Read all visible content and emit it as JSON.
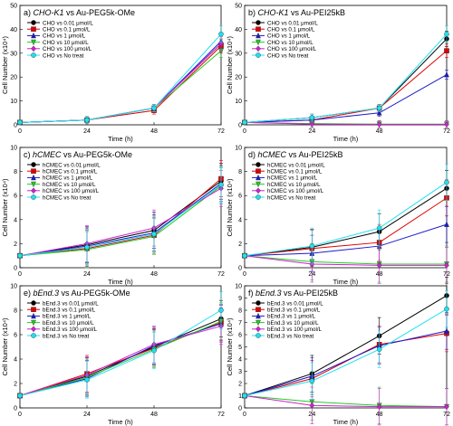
{
  "chart_data": [
    {
      "type": "line",
      "panel_label": "a)",
      "title_cell": "CHO-K1",
      "title_rest": " vs Au-PEG5k-OMe",
      "xlabel": "Time (h)",
      "ylabel": "Cell Number (x10⁴)",
      "x": [
        0,
        24,
        48,
        72
      ],
      "xticks": [
        "0",
        "24",
        "48",
        "72"
      ],
      "ylim": [
        0,
        50
      ],
      "yticks": [
        0,
        10,
        20,
        30,
        40,
        50
      ],
      "legend": "top-left",
      "series": [
        {
          "name": "CHO vs 0.01 μmol/L",
          "values": [
            1,
            2,
            7,
            34
          ],
          "color": "#000000",
          "marker": "circle"
        },
        {
          "name": "CHO vs 0.1 μmol/L",
          "values": [
            1,
            2,
            6,
            33
          ],
          "color": "#e00000",
          "marker": "square"
        },
        {
          "name": "CHO vs 1 μmol/L",
          "values": [
            1,
            2,
            7,
            35
          ],
          "color": "#1a1acc",
          "marker": "triangle"
        },
        {
          "name": "CHO vs 10 μmol/L",
          "values": [
            1,
            2,
            7,
            31
          ],
          "color": "#22cc22",
          "marker": "tri-down"
        },
        {
          "name": "CHO vs 100 μmol/L",
          "values": [
            1,
            2,
            7,
            34
          ],
          "color": "#d020d0",
          "marker": "diamond"
        },
        {
          "name": "CHO vs No treat",
          "values": [
            1,
            2,
            7,
            38
          ],
          "color": "#20e0f0",
          "marker": "circle-open"
        }
      ]
    },
    {
      "type": "line",
      "panel_label": "b)",
      "title_cell": "CHO-K1",
      "title_rest": " vs Au-PEI25kB",
      "xlabel": "Time (h)",
      "ylabel": "Cell Number (x10⁴)",
      "x": [
        0,
        24,
        48,
        72
      ],
      "xticks": [
        "0",
        "24",
        "48",
        "72"
      ],
      "ylim": [
        0,
        50
      ],
      "yticks": [
        0,
        10,
        20,
        30,
        40,
        50
      ],
      "legend": "top-left",
      "series": [
        {
          "name": "CHO vs 0.01 μmol/L",
          "values": [
            1,
            3,
            7,
            36
          ],
          "color": "#000000",
          "marker": "circle"
        },
        {
          "name": "CHO vs 0.1 μmol/L",
          "values": [
            1,
            2,
            7,
            31
          ],
          "color": "#e00000",
          "marker": "square"
        },
        {
          "name": "CHO vs 1 μmol/L",
          "values": [
            1,
            2,
            5,
            21
          ],
          "color": "#1a1acc",
          "marker": "triangle"
        },
        {
          "name": "CHO vs 10 μmol/L",
          "values": [
            1,
            0.5,
            0.3,
            0.3
          ],
          "color": "#22cc22",
          "marker": "tri-down"
        },
        {
          "name": "CHO vs 100 μmol/L",
          "values": [
            1,
            0.3,
            0.2,
            0.2
          ],
          "color": "#d020d0",
          "marker": "diamond"
        },
        {
          "name": "CHO vs No treat",
          "values": [
            1,
            3,
            7,
            38
          ],
          "color": "#20e0f0",
          "marker": "circle-open"
        }
      ]
    },
    {
      "type": "line",
      "panel_label": "c)",
      "title_cell": "hCMEC",
      "title_rest": " vs Au-PEG5k-OMe",
      "xlabel": "Time (h)",
      "ylabel": "Cell Number (x10⁴)",
      "x": [
        0,
        24,
        48,
        72
      ],
      "xticks": [
        "0",
        "24",
        "48",
        "72"
      ],
      "ylim": [
        0,
        10
      ],
      "yticks": [
        0,
        2,
        4,
        6,
        8,
        10
      ],
      "legend": "top-left",
      "series": [
        {
          "name": "hCMEC vs 0.01 μmol/L",
          "values": [
            1,
            1.9,
            3.1,
            7.2
          ],
          "color": "#000000",
          "marker": "circle"
        },
        {
          "name": "hCMEC vs 0.1 μmol/L",
          "values": [
            1,
            1.6,
            2.7,
            7.4
          ],
          "color": "#e00000",
          "marker": "square"
        },
        {
          "name": "hCMEC vs 1 μmol/L",
          "values": [
            1,
            1.8,
            2.9,
            7.0
          ],
          "color": "#1a1acc",
          "marker": "triangle"
        },
        {
          "name": "hCMEC vs 10 μmol/L",
          "values": [
            1,
            1.5,
            2.6,
            6.8
          ],
          "color": "#22cc22",
          "marker": "tri-down"
        },
        {
          "name": "hCMEC vs 100 μmol/L",
          "values": [
            1,
            2.0,
            3.3,
            6.6
          ],
          "color": "#d020d0",
          "marker": "diamond"
        },
        {
          "name": "hCMEC vs No treat",
          "values": [
            1,
            1.7,
            2.8,
            6.9
          ],
          "color": "#20e0f0",
          "marker": "circle-open"
        }
      ]
    },
    {
      "type": "line",
      "panel_label": "d)",
      "title_cell": "hCMEC",
      "title_rest": " vs Au-PEI25kB",
      "xlabel": "Time (h)",
      "ylabel": "Cell Number (x10⁴)",
      "x": [
        0,
        24,
        48,
        72
      ],
      "xticks": [
        "0",
        "24",
        "48",
        "72"
      ],
      "ylim": [
        0,
        10
      ],
      "yticks": [
        0,
        2,
        4,
        6,
        8,
        10
      ],
      "legend": "top-left",
      "series": [
        {
          "name": "hCMEC vs 0.01 μmol/L",
          "values": [
            1,
            1.7,
            3.0,
            6.6
          ],
          "color": "#000000",
          "marker": "circle"
        },
        {
          "name": "hCMEC vs 0.1 μmol/L",
          "values": [
            1,
            1.6,
            2.1,
            5.8
          ],
          "color": "#e00000",
          "marker": "square"
        },
        {
          "name": "hCMEC vs 1 μmol/L",
          "values": [
            1,
            1.2,
            1.8,
            3.6
          ],
          "color": "#1a1acc",
          "marker": "triangle"
        },
        {
          "name": "hCMEC vs 10 μmol/L",
          "values": [
            1,
            0.5,
            0.3,
            0.3
          ],
          "color": "#22cc22",
          "marker": "tri-down"
        },
        {
          "name": "hCMEC vs 100 μmol/L",
          "values": [
            1,
            0.3,
            0.2,
            0.2
          ],
          "color": "#d020d0",
          "marker": "diamond"
        },
        {
          "name": "hCMEC vs No treat",
          "values": [
            1,
            1.8,
            3.3,
            7.1
          ],
          "color": "#20e0f0",
          "marker": "circle-open"
        }
      ]
    },
    {
      "type": "line",
      "panel_label": "e)",
      "title_cell": "bEnd.3",
      "title_rest": " vs Au-PEG5k-OMe",
      "xlabel": "Time (h)",
      "ylabel": "Cell Number (x10⁴)",
      "x": [
        0,
        24,
        48,
        72
      ],
      "xticks": [
        "0",
        "24",
        "48",
        "72"
      ],
      "ylim": [
        0,
        10
      ],
      "yticks": [
        0,
        2,
        4,
        6,
        8,
        10
      ],
      "legend": "top-left",
      "series": [
        {
          "name": "bEnd.3 vs 0.01 μmol/L",
          "values": [
            1,
            2.6,
            5.0,
            7.3
          ],
          "color": "#000000",
          "marker": "circle"
        },
        {
          "name": "bEnd.3 vs 0.1 μmol/L",
          "values": [
            1,
            2.8,
            4.9,
            7.0
          ],
          "color": "#e00000",
          "marker": "square"
        },
        {
          "name": "bEnd.3 vs 1 μmol/L",
          "values": [
            1,
            2.4,
            5.1,
            6.9
          ],
          "color": "#1a1acc",
          "marker": "triangle"
        },
        {
          "name": "bEnd.3 vs 10 μmol/L",
          "values": [
            1,
            2.5,
            4.8,
            7.1
          ],
          "color": "#22cc22",
          "marker": "tri-down"
        },
        {
          "name": "bEnd.3 vs 100 μmol/L",
          "values": [
            1,
            2.7,
            5.2,
            6.7
          ],
          "color": "#d020d0",
          "marker": "diamond"
        },
        {
          "name": "bEnd.3 vs No treat",
          "values": [
            1,
            2.3,
            4.7,
            8.0
          ],
          "color": "#20e0f0",
          "marker": "circle-open"
        }
      ]
    },
    {
      "type": "line",
      "panel_label": "f)",
      "title_cell": "bEnd.3",
      "title_rest": " vs Au-PEI25kB",
      "xlabel": "Time (h)",
      "ylabel": "Cell Number (x10⁴)",
      "x": [
        0,
        24,
        48,
        72
      ],
      "xticks": [
        "0",
        "24",
        "48",
        "72"
      ],
      "ylim": [
        0,
        10
      ],
      "yticks": [
        0,
        1,
        2,
        3,
        4,
        5,
        6,
        7,
        8,
        9,
        10
      ],
      "legend": "top-left",
      "series": [
        {
          "name": "bEnd.3 vs 0.01 μmol/L",
          "values": [
            1,
            2.8,
            5.9,
            9.2
          ],
          "color": "#000000",
          "marker": "circle"
        },
        {
          "name": "bEnd.3 vs 0.1 μmol/L",
          "values": [
            1,
            2.4,
            5.2,
            6.1
          ],
          "color": "#e00000",
          "marker": "square"
        },
        {
          "name": "bEnd.3 vs 1 μmol/L",
          "values": [
            1,
            2.6,
            5.1,
            6.3
          ],
          "color": "#1a1acc",
          "marker": "triangle"
        },
        {
          "name": "bEnd.3 vs 10 μmol/L",
          "values": [
            1,
            0.5,
            0.2,
            0.1
          ],
          "color": "#22cc22",
          "marker": "tri-down"
        },
        {
          "name": "bEnd.3 vs 100 μmol/L",
          "values": [
            1,
            0.2,
            0.1,
            0.1
          ],
          "color": "#d020d0",
          "marker": "diamond"
        },
        {
          "name": "bEnd.3 vs No treat",
          "values": [
            1,
            2.2,
            4.8,
            8.1
          ],
          "color": "#20e0f0",
          "marker": "circle-open"
        }
      ]
    }
  ]
}
